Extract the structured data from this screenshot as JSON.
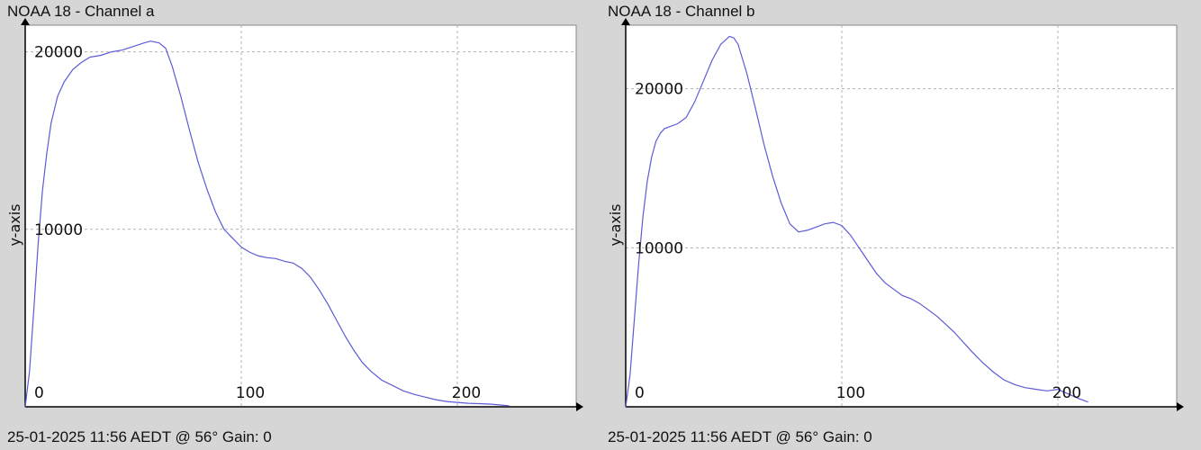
{
  "colors": {
    "background": "#d6d6d6",
    "plot_background": "#ffffff",
    "series_line": "#5b5bd6",
    "grid": "#b0b0b0",
    "axis": "#000000"
  },
  "panels": [
    {
      "title": "NOAA 18 - Channel a",
      "footer": "25-01-2025 11:56 AEDT @ 56° Gain: 0"
    },
    {
      "title": "NOAA 18 - Channel b",
      "footer": "25-01-2025 11:56 AEDT @ 56° Gain: 0"
    }
  ],
  "chart_data": [
    {
      "type": "line",
      "title": "NOAA 18 - Channel a",
      "xlabel": "",
      "ylabel": "y-axis",
      "xlim": [
        0,
        255
      ],
      "ylim": [
        0,
        21500
      ],
      "xticks": [
        0,
        100,
        200
      ],
      "yticks": [
        10000,
        20000
      ],
      "grid": true,
      "series": [
        {
          "x": [
            0,
            2,
            4,
            6,
            8,
            10,
            12,
            15,
            18,
            22,
            26,
            30,
            35,
            40,
            45,
            50,
            55,
            58,
            62,
            65,
            68,
            72,
            76,
            80,
            84,
            88,
            92,
            96,
            100,
            104,
            108,
            112,
            116,
            120,
            124,
            128,
            132,
            136,
            140,
            144,
            148,
            152,
            156,
            160,
            165,
            170,
            175,
            180,
            185,
            190,
            195,
            200,
            205,
            210,
            215,
            220,
            224
          ],
          "y": [
            0,
            2000,
            5500,
            9200,
            12200,
            14300,
            16000,
            17500,
            18300,
            19000,
            19400,
            19700,
            19800,
            20000,
            20100,
            20300,
            20500,
            20600,
            20500,
            20200,
            19200,
            17500,
            15600,
            13800,
            12300,
            11000,
            10000,
            9500,
            9000,
            8700,
            8500,
            8400,
            8350,
            8200,
            8100,
            7800,
            7300,
            6600,
            5800,
            4900,
            4000,
            3200,
            2500,
            2000,
            1500,
            1200,
            900,
            700,
            550,
            400,
            300,
            250,
            200,
            180,
            150,
            100,
            50
          ]
        }
      ]
    },
    {
      "type": "line",
      "title": "NOAA 18 - Channel b",
      "xlabel": "",
      "ylabel": "y-axis",
      "xlim": [
        0,
        255
      ],
      "ylim": [
        0,
        24000
      ],
      "xticks": [
        0,
        100,
        200
      ],
      "yticks": [
        10000,
        20000
      ],
      "grid": true,
      "series": [
        {
          "x": [
            0,
            2,
            4,
            6,
            8,
            10,
            12,
            14,
            16,
            18,
            20,
            24,
            28,
            32,
            36,
            40,
            44,
            48,
            50,
            52,
            56,
            60,
            64,
            68,
            72,
            76,
            80,
            84,
            88,
            92,
            96,
            100,
            104,
            108,
            112,
            116,
            120,
            124,
            128,
            132,
            136,
            140,
            144,
            148,
            152,
            156,
            160,
            165,
            170,
            175,
            180,
            185,
            190,
            195,
            200,
            205,
            210,
            214
          ],
          "y": [
            0,
            2000,
            5500,
            9000,
            12000,
            14200,
            15700,
            16700,
            17200,
            17500,
            17600,
            17800,
            18200,
            19200,
            20500,
            21800,
            22800,
            23300,
            23200,
            22800,
            21000,
            18800,
            16500,
            14500,
            12800,
            11500,
            11000,
            11100,
            11300,
            11500,
            11600,
            11400,
            10800,
            10000,
            9200,
            8400,
            7800,
            7400,
            7000,
            6800,
            6500,
            6100,
            5700,
            5200,
            4700,
            4100,
            3500,
            2800,
            2200,
            1700,
            1400,
            1200,
            1100,
            1000,
            1100,
            800,
            500,
            300
          ]
        }
      ]
    }
  ]
}
